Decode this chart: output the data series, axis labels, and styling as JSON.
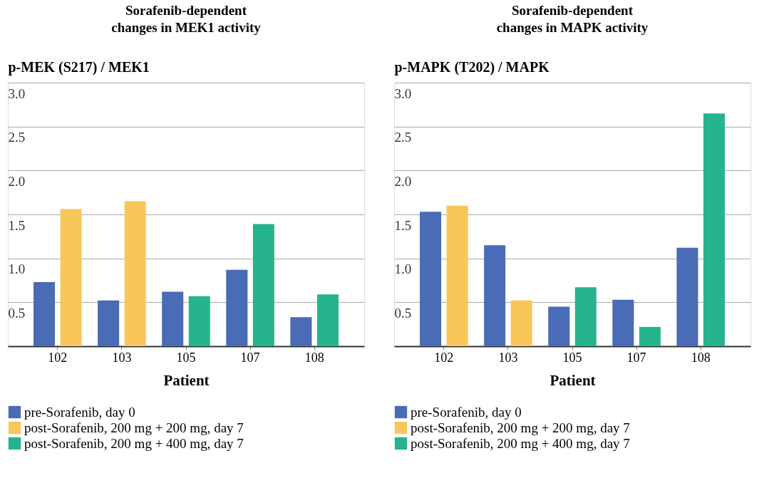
{
  "chart_data": [
    {
      "type": "bar",
      "title": "Sorafenib-dependent\nchanges in MEK1 activity",
      "ylabel": "p-MEK (S217) / MEK1",
      "xlabel": "Patient",
      "categories": [
        "102",
        "103",
        "105",
        "107",
        "108"
      ],
      "series": [
        {
          "name": "pre-Sorafenib, day 0",
          "color": "#4a6bb5",
          "values": [
            0.73,
            0.52,
            0.62,
            0.87,
            0.33
          ]
        },
        {
          "name": "post-Sorafenib, 200 mg + 200 mg, day 7",
          "color": "#f7c75a",
          "values": [
            1.56,
            1.65,
            null,
            null,
            null
          ]
        },
        {
          "name": "post-Sorafenib, 200 mg + 400 mg, day 7",
          "color": "#25b48e",
          "values": [
            null,
            null,
            0.57,
            1.39,
            0.59
          ]
        }
      ],
      "ylim": [
        0,
        3.0
      ],
      "yticks": [
        {
          "value": 0,
          "label": null
        },
        0.5,
        {
          "value": 1,
          "label": "1.0"
        },
        1.5,
        {
          "value": 2,
          "label": "2.0"
        },
        2.5,
        {
          "value": 3,
          "label": "3.0"
        }
      ],
      "grid": "y",
      "legend": "bottom"
    },
    {
      "type": "bar",
      "title": "Sorafenib-dependent\nchanges in MAPK activity",
      "ylabel": "p-MAPK (T202) / MAPK",
      "xlabel": "Patient",
      "categories": [
        "102",
        "103",
        "105",
        "107",
        "108"
      ],
      "series": [
        {
          "name": "pre-Sorafenib, day 0",
          "color": "#4a6bb5",
          "values": [
            1.53,
            1.15,
            0.45,
            0.53,
            1.12
          ]
        },
        {
          "name": "post-Sorafenib, 200 mg + 200 mg, day 7",
          "color": "#f7c75a",
          "values": [
            1.6,
            0.52,
            null,
            null,
            null
          ]
        },
        {
          "name": "post-Sorafenib, 200 mg + 400 mg, day 7",
          "color": "#25b48e",
          "values": [
            null,
            null,
            0.67,
            0.22,
            2.65
          ]
        }
      ],
      "ylim": [
        0,
        3.0
      ],
      "yticks": [
        {
          "value": 0,
          "label": null
        },
        0.5,
        {
          "value": 1,
          "label": "1.0"
        },
        1.5,
        {
          "value": 2,
          "label": "2.0"
        },
        2.5,
        {
          "value": 3,
          "label": "3.0"
        }
      ],
      "grid": "y",
      "legend": "bottom"
    }
  ]
}
